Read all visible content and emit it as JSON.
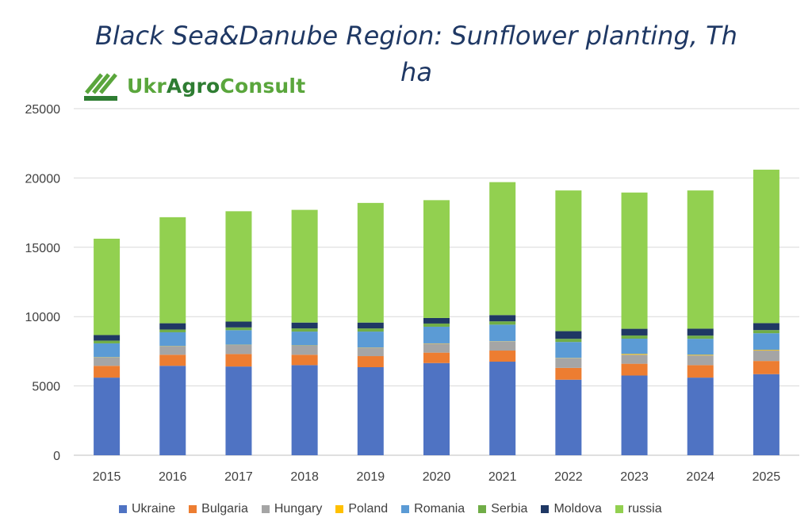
{
  "logo": {
    "text_ukr": "Ukr",
    "text_agro": "Agro",
    "text_consult": "Consult"
  },
  "chart_data": {
    "type": "bar",
    "stacked": true,
    "title": "Black Sea&Danube Region: Sunflower planting, Th ha",
    "title_line1": "Black Sea&Danube Region: Sunflower planting, Th",
    "title_line2": "ha",
    "xlabel": "",
    "ylabel": "",
    "ylim": [
      0,
      25000
    ],
    "yticks": [
      0,
      5000,
      10000,
      15000,
      20000,
      25000
    ],
    "grid": true,
    "legend_position": "bottom",
    "categories": [
      "2015",
      "2016",
      "2017",
      "2018",
      "2019",
      "2020",
      "2021",
      "2022",
      "2023",
      "2024",
      "2025"
    ],
    "series": [
      {
        "name": "Ukraine",
        "color": "#4f73c3",
        "values": [
          5600,
          6450,
          6400,
          6500,
          6350,
          6650,
          6750,
          5450,
          5750,
          5600,
          5850
        ]
      },
      {
        "name": "Bulgaria",
        "color": "#ed7d31",
        "values": [
          850,
          800,
          900,
          750,
          800,
          750,
          800,
          850,
          850,
          900,
          950
        ]
      },
      {
        "name": "Hungary",
        "color": "#a5a5a5",
        "values": [
          600,
          600,
          650,
          650,
          600,
          650,
          650,
          700,
          650,
          700,
          750
        ]
      },
      {
        "name": "Poland",
        "color": "#ffc000",
        "values": [
          20,
          20,
          20,
          20,
          20,
          20,
          20,
          20,
          60,
          50,
          50
        ]
      },
      {
        "name": "Romania",
        "color": "#5b9bd5",
        "values": [
          1000,
          1000,
          1050,
          1000,
          1150,
          1200,
          1200,
          1150,
          1100,
          1150,
          1200
        ]
      },
      {
        "name": "Serbia",
        "color": "#70ad47",
        "values": [
          200,
          200,
          200,
          230,
          230,
          230,
          240,
          230,
          230,
          230,
          230
        ]
      },
      {
        "name": "Moldova",
        "color": "#1f3864",
        "values": [
          400,
          450,
          420,
          420,
          420,
          400,
          450,
          550,
          480,
          500,
          500
        ]
      },
      {
        "name": "russia",
        "color": "#92d050",
        "values": [
          6950,
          7650,
          7960,
          8130,
          8630,
          8500,
          9590,
          10150,
          9830,
          9970,
          11070
        ]
      }
    ]
  }
}
